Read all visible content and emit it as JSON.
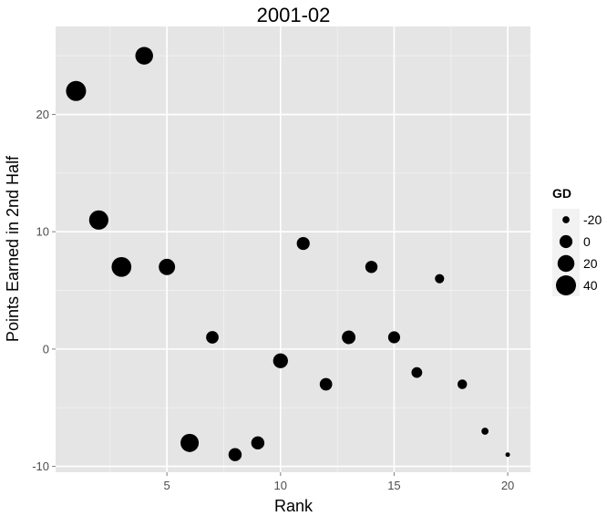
{
  "chart_data": {
    "type": "scatter",
    "title": "2001-02",
    "xlabel": "Rank",
    "ylabel": "Points Earned in 2nd Half",
    "xlim": [
      0.1,
      21
    ],
    "ylim": [
      -10.5,
      27.5
    ],
    "xticks": [
      5,
      10,
      15,
      20
    ],
    "yticks": [
      -10,
      0,
      10,
      20
    ],
    "xtick_labels": [
      "5",
      "10",
      "15",
      "20"
    ],
    "ytick_labels": [
      "-10",
      "0",
      "10",
      "20"
    ],
    "grid": true,
    "size_variable": "GD",
    "legend": {
      "title": "GD",
      "position": "right",
      "entries": [
        {
          "label": "-20",
          "value": -20
        },
        {
          "label": "0",
          "value": 0
        },
        {
          "label": "20",
          "value": 20
        },
        {
          "label": "40",
          "value": 40
        }
      ]
    },
    "points": [
      {
        "x": 1,
        "y": 22,
        "gd": 40
      },
      {
        "x": 2,
        "y": 11,
        "gd": 35
      },
      {
        "x": 3,
        "y": 7,
        "gd": 38
      },
      {
        "x": 4,
        "y": 25,
        "gd": 25
      },
      {
        "x": 5,
        "y": 7,
        "gd": 17
      },
      {
        "x": 6,
        "y": -8,
        "gd": 28
      },
      {
        "x": 7,
        "y": 1,
        "gd": -2
      },
      {
        "x": 8,
        "y": -9,
        "gd": 1
      },
      {
        "x": 9,
        "y": -8,
        "gd": 1
      },
      {
        "x": 10,
        "y": -1,
        "gd": 9
      },
      {
        "x": 11,
        "y": 9,
        "gd": 0
      },
      {
        "x": 12,
        "y": -3,
        "gd": -2
      },
      {
        "x": 13,
        "y": 1,
        "gd": 3
      },
      {
        "x": 14,
        "y": 7,
        "gd": -3
      },
      {
        "x": 15,
        "y": 1,
        "gd": -4
      },
      {
        "x": 16,
        "y": -2,
        "gd": -9
      },
      {
        "x": 17,
        "y": 6,
        "gd": -14
      },
      {
        "x": 18,
        "y": -3,
        "gd": -13
      },
      {
        "x": 19,
        "y": -7,
        "gd": -20
      },
      {
        "x": 20,
        "y": -9,
        "gd": -25
      }
    ]
  },
  "colors": {
    "panel_bg": "#e5e5e5",
    "grid_major": "#ffffff",
    "grid_minor": "#f2f2f2",
    "point": "#000000",
    "tick": "#7f7f7f"
  }
}
